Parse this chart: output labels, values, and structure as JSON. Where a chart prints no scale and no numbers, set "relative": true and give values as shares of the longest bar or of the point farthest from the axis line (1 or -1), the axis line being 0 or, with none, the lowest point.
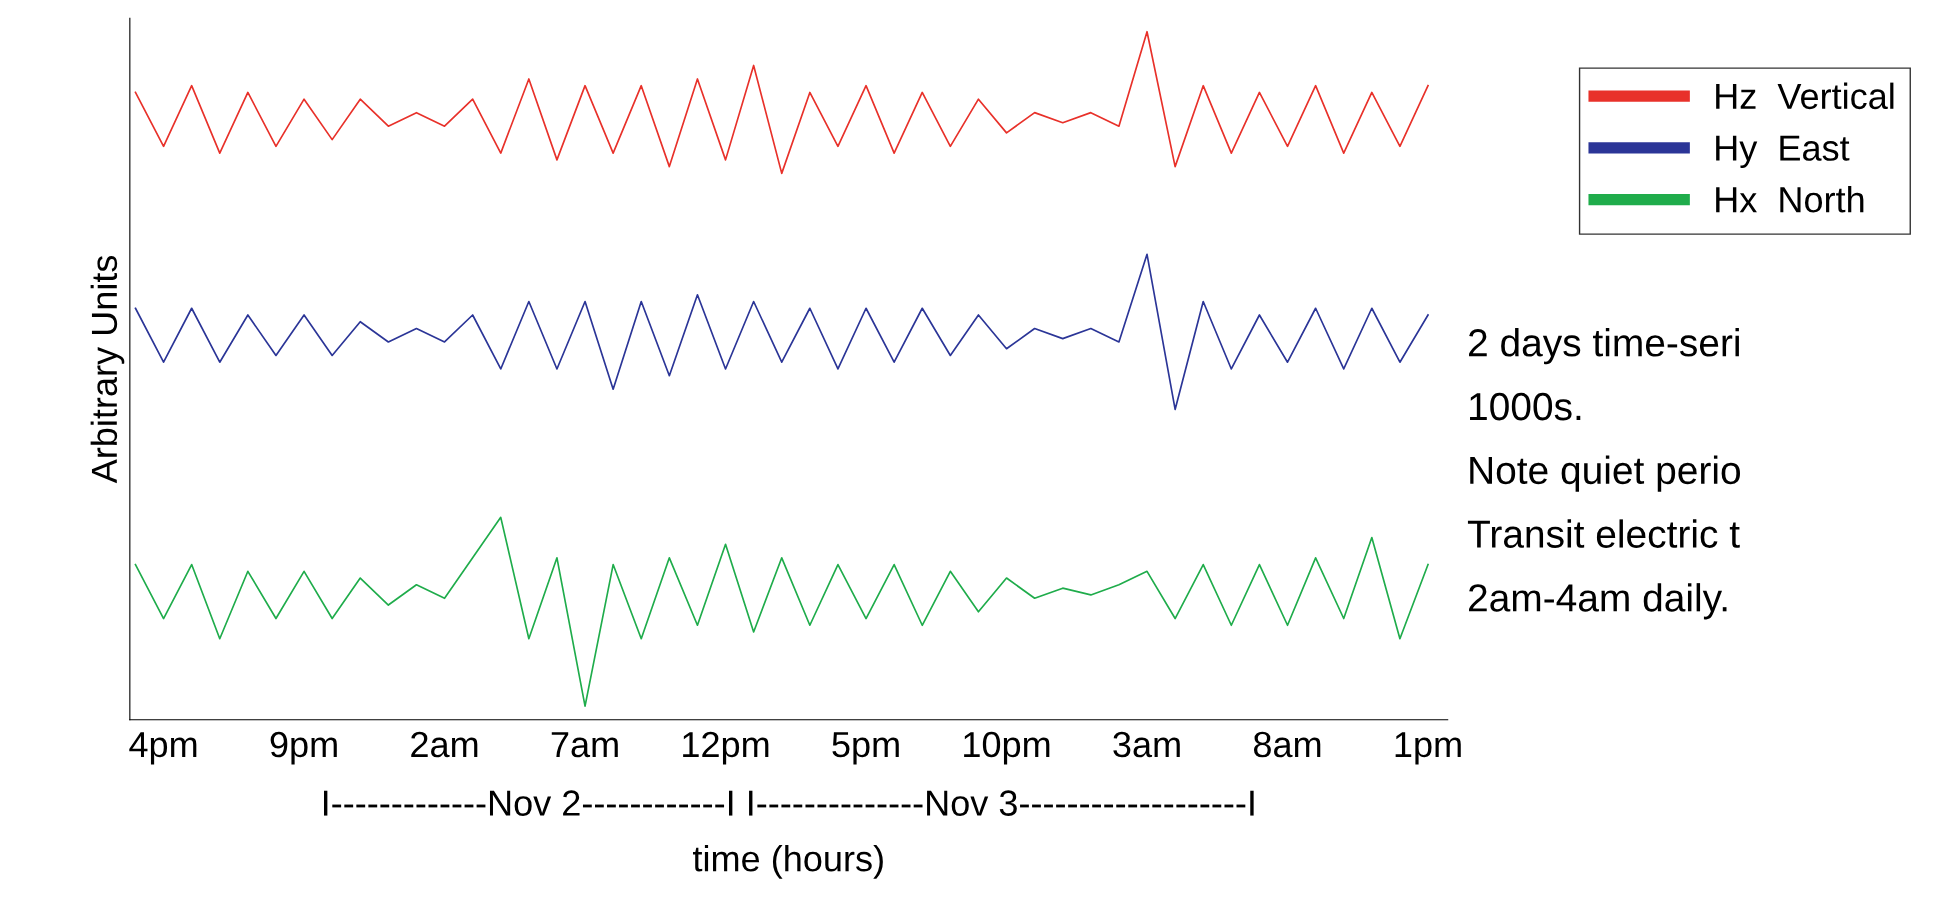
{
  "chart_data": {
    "type": "line",
    "relative": true,
    "ylabel": "Arbitrary Units",
    "xlabel": "time (hours)",
    "categories": [
      null,
      "4pm",
      null,
      null,
      null,
      null,
      "9pm",
      null,
      null,
      null,
      null,
      "2am",
      null,
      null,
      null,
      null,
      "7am",
      null,
      null,
      null,
      null,
      "12pm",
      null,
      null,
      null,
      null,
      "5pm",
      null,
      null,
      null,
      null,
      "10pm",
      null,
      null,
      null,
      null,
      "3am",
      null,
      null,
      null,
      null,
      "8am",
      null,
      null,
      null,
      null,
      "1pm"
    ],
    "tick_labels": "x",
    "legend": "top right",
    "grid": false,
    "series": [
      {
        "name": "Hz  Vertical",
        "color": "#e8312a",
        "values": [
          0.91,
          0.83,
          0.92,
          0.82,
          0.91,
          0.83,
          0.9,
          0.84,
          0.9,
          0.86,
          0.88,
          0.86,
          0.9,
          0.82,
          0.93,
          0.81,
          0.92,
          0.82,
          0.92,
          0.8,
          0.93,
          0.81,
          0.95,
          0.79,
          0.91,
          0.83,
          0.92,
          0.82,
          0.91,
          0.83,
          0.9,
          0.85,
          0.88,
          0.865,
          0.88,
          0.86,
          1.0,
          0.8,
          0.92,
          0.82,
          0.91,
          0.83,
          0.92,
          0.82,
          0.91,
          0.83,
          0.92
        ]
      },
      {
        "name": "Hy  East",
        "color": "#2b3597",
        "values": [
          0.59,
          0.51,
          0.59,
          0.51,
          0.58,
          0.52,
          0.58,
          0.52,
          0.57,
          0.54,
          0.56,
          0.54,
          0.58,
          0.5,
          0.6,
          0.5,
          0.6,
          0.47,
          0.6,
          0.49,
          0.61,
          0.5,
          0.6,
          0.51,
          0.59,
          0.5,
          0.59,
          0.51,
          0.59,
          0.52,
          0.58,
          0.53,
          0.56,
          0.545,
          0.56,
          0.54,
          0.67,
          0.44,
          0.6,
          0.5,
          0.58,
          0.51,
          0.59,
          0.5,
          0.59,
          0.51,
          0.58
        ]
      },
      {
        "name": "Hx  North",
        "color": "#1fac4b",
        "values": [
          0.21,
          0.13,
          0.21,
          0.1,
          0.2,
          0.13,
          0.2,
          0.13,
          0.19,
          0.15,
          0.18,
          0.16,
          0.22,
          0.28,
          0.1,
          0.22,
          0.0,
          0.21,
          0.1,
          0.22,
          0.12,
          0.24,
          0.11,
          0.22,
          0.12,
          0.21,
          0.13,
          0.21,
          0.12,
          0.2,
          0.14,
          0.19,
          0.16,
          0.175,
          0.165,
          0.18,
          0.2,
          0.13,
          0.21,
          0.12,
          0.21,
          0.12,
          0.22,
          0.13,
          0.25,
          0.1,
          0.21
        ]
      }
    ],
    "annotations": [
      "I-------------Nov 2------------I I--------------Nov 3-------------------I",
      "2 days time-seri",
      "1000s.",
      "Note quiet perio",
      "Transit electric t",
      "2am-4am daily."
    ]
  }
}
